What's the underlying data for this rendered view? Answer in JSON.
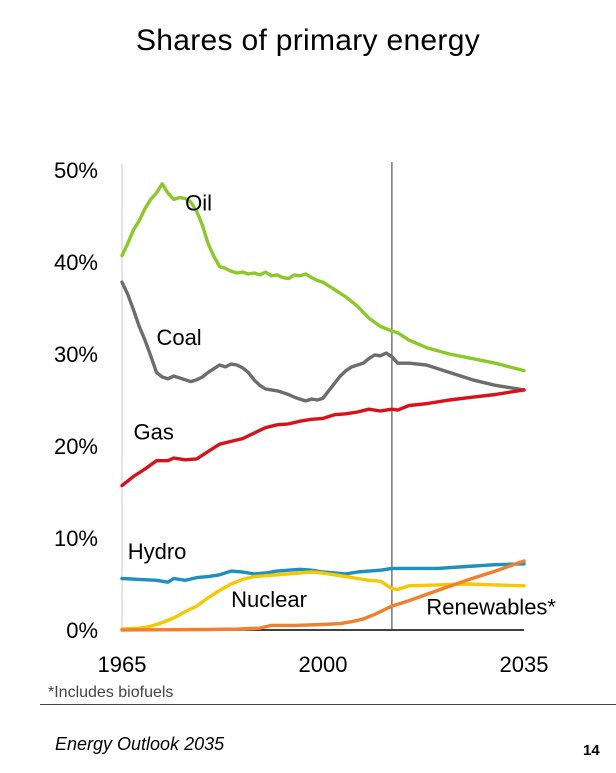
{
  "page_title": "Shares of primary energy",
  "footnote": "*Includes biofuels",
  "source": "Energy Outlook 2035",
  "page_number": "14",
  "chart_data": {
    "type": "line",
    "title": "Shares of primary energy",
    "xlabel": "",
    "ylabel": "",
    "xlim": [
      1965,
      2035
    ],
    "ylim": [
      0,
      50
    ],
    "x_ticks": [
      1965,
      2000,
      2035
    ],
    "x_tick_labels": [
      "1965",
      "2000",
      "2035"
    ],
    "y_ticks": [
      0,
      10,
      20,
      30,
      40,
      50
    ],
    "y_tick_labels": [
      "0%",
      "10%",
      "20%",
      "30%",
      "40%",
      "50%"
    ],
    "forecast_start": 2012,
    "series": [
      {
        "name": "Oil",
        "label": "Oil",
        "color": "#8ac926",
        "points": [
          [
            1965,
            40.7
          ],
          [
            1966,
            42.0
          ],
          [
            1967,
            43.5
          ],
          [
            1968,
            44.5
          ],
          [
            1969,
            45.8
          ],
          [
            1970,
            46.8
          ],
          [
            1971,
            47.5
          ],
          [
            1972,
            48.5
          ],
          [
            1973,
            47.5
          ],
          [
            1974,
            46.8
          ],
          [
            1975,
            47.0
          ],
          [
            1976,
            46.9
          ],
          [
            1977,
            46.5
          ],
          [
            1978,
            45.5
          ],
          [
            1979,
            44.0
          ],
          [
            1980,
            42.0
          ],
          [
            1981,
            40.6
          ],
          [
            1982,
            39.5
          ],
          [
            1983,
            39.3
          ],
          [
            1984,
            39.0
          ],
          [
            1985,
            38.8
          ],
          [
            1986,
            38.9
          ],
          [
            1987,
            38.7
          ],
          [
            1988,
            38.8
          ],
          [
            1989,
            38.6
          ],
          [
            1990,
            38.9
          ],
          [
            1991,
            38.5
          ],
          [
            1992,
            38.6
          ],
          [
            1993,
            38.3
          ],
          [
            1994,
            38.2
          ],
          [
            1995,
            38.6
          ],
          [
            1996,
            38.5
          ],
          [
            1997,
            38.7
          ],
          [
            1998,
            38.3
          ],
          [
            1999,
            38.0
          ],
          [
            2000,
            37.8
          ],
          [
            2002,
            37.0
          ],
          [
            2004,
            36.2
          ],
          [
            2006,
            35.2
          ],
          [
            2008,
            33.9
          ],
          [
            2010,
            33.0
          ],
          [
            2012,
            32.5
          ],
          [
            2013,
            32.3
          ],
          [
            2015,
            31.5
          ],
          [
            2018,
            30.7
          ],
          [
            2022,
            30.0
          ],
          [
            2026,
            29.5
          ],
          [
            2030,
            29.0
          ],
          [
            2035,
            28.2
          ]
        ]
      },
      {
        "name": "Coal",
        "label": "Coal",
        "color": "#6d6d6d",
        "points": [
          [
            1965,
            37.8
          ],
          [
            1966,
            36.5
          ],
          [
            1967,
            34.8
          ],
          [
            1968,
            33.0
          ],
          [
            1969,
            31.5
          ],
          [
            1970,
            29.8
          ],
          [
            1971,
            28.0
          ],
          [
            1972,
            27.5
          ],
          [
            1973,
            27.3
          ],
          [
            1974,
            27.6
          ],
          [
            1975,
            27.4
          ],
          [
            1976,
            27.2
          ],
          [
            1977,
            27.0
          ],
          [
            1978,
            27.2
          ],
          [
            1979,
            27.5
          ],
          [
            1980,
            28.0
          ],
          [
            1981,
            28.4
          ],
          [
            1982,
            28.8
          ],
          [
            1983,
            28.6
          ],
          [
            1984,
            28.9
          ],
          [
            1985,
            28.8
          ],
          [
            1986,
            28.5
          ],
          [
            1987,
            28.0
          ],
          [
            1988,
            27.2
          ],
          [
            1989,
            26.6
          ],
          [
            1990,
            26.2
          ],
          [
            1991,
            26.1
          ],
          [
            1992,
            26.0
          ],
          [
            1993,
            25.8
          ],
          [
            1994,
            25.6
          ],
          [
            1995,
            25.3
          ],
          [
            1996,
            25.1
          ],
          [
            1997,
            24.9
          ],
          [
            1998,
            25.1
          ],
          [
            1999,
            25.0
          ],
          [
            2000,
            25.2
          ],
          [
            2001,
            26.0
          ],
          [
            2002,
            26.8
          ],
          [
            2003,
            27.6
          ],
          [
            2004,
            28.2
          ],
          [
            2005,
            28.6
          ],
          [
            2006,
            28.8
          ],
          [
            2007,
            29.0
          ],
          [
            2008,
            29.5
          ],
          [
            2009,
            29.9
          ],
          [
            2010,
            29.8
          ],
          [
            2011,
            30.1
          ],
          [
            2012,
            29.7
          ],
          [
            2013,
            29.0
          ],
          [
            2015,
            29.0
          ],
          [
            2018,
            28.8
          ],
          [
            2022,
            28.0
          ],
          [
            2026,
            27.2
          ],
          [
            2030,
            26.6
          ],
          [
            2035,
            26.1
          ]
        ]
      },
      {
        "name": "Gas",
        "label": "Gas",
        "color": "#d9121a",
        "points": [
          [
            1965,
            15.7
          ],
          [
            1967,
            16.7
          ],
          [
            1969,
            17.5
          ],
          [
            1971,
            18.4
          ],
          [
            1973,
            18.4
          ],
          [
            1974,
            18.7
          ],
          [
            1976,
            18.5
          ],
          [
            1978,
            18.6
          ],
          [
            1980,
            19.4
          ],
          [
            1982,
            20.2
          ],
          [
            1984,
            20.5
          ],
          [
            1986,
            20.8
          ],
          [
            1988,
            21.4
          ],
          [
            1990,
            22.0
          ],
          [
            1992,
            22.3
          ],
          [
            1994,
            22.4
          ],
          [
            1996,
            22.7
          ],
          [
            1998,
            22.9
          ],
          [
            2000,
            23.0
          ],
          [
            2002,
            23.4
          ],
          [
            2004,
            23.5
          ],
          [
            2006,
            23.7
          ],
          [
            2008,
            24.0
          ],
          [
            2010,
            23.8
          ],
          [
            2012,
            24.0
          ],
          [
            2013,
            23.9
          ],
          [
            2015,
            24.4
          ],
          [
            2018,
            24.6
          ],
          [
            2022,
            25.0
          ],
          [
            2026,
            25.3
          ],
          [
            2030,
            25.6
          ],
          [
            2035,
            26.1
          ]
        ]
      },
      {
        "name": "Hydro",
        "label": "Hydro",
        "color": "#1f8fc0",
        "points": [
          [
            1965,
            5.6
          ],
          [
            1968,
            5.5
          ],
          [
            1971,
            5.4
          ],
          [
            1973,
            5.2
          ],
          [
            1974,
            5.6
          ],
          [
            1976,
            5.4
          ],
          [
            1978,
            5.7
          ],
          [
            1980,
            5.8
          ],
          [
            1982,
            6.0
          ],
          [
            1984,
            6.4
          ],
          [
            1986,
            6.3
          ],
          [
            1988,
            6.1
          ],
          [
            1990,
            6.2
          ],
          [
            1992,
            6.4
          ],
          [
            1994,
            6.5
          ],
          [
            1996,
            6.6
          ],
          [
            1998,
            6.5
          ],
          [
            2000,
            6.3
          ],
          [
            2002,
            6.2
          ],
          [
            2004,
            6.1
          ],
          [
            2006,
            6.3
          ],
          [
            2008,
            6.4
          ],
          [
            2010,
            6.5
          ],
          [
            2012,
            6.7
          ],
          [
            2015,
            6.7
          ],
          [
            2020,
            6.7
          ],
          [
            2025,
            6.9
          ],
          [
            2030,
            7.1
          ],
          [
            2035,
            7.2
          ]
        ]
      },
      {
        "name": "Nuclear",
        "label": "Nuclear",
        "color": "#f5c800",
        "points": [
          [
            1965,
            0.1
          ],
          [
            1968,
            0.2
          ],
          [
            1970,
            0.4
          ],
          [
            1972,
            0.8
          ],
          [
            1974,
            1.3
          ],
          [
            1976,
            2.0
          ],
          [
            1978,
            2.6
          ],
          [
            1980,
            3.5
          ],
          [
            1982,
            4.3
          ],
          [
            1984,
            5.0
          ],
          [
            1986,
            5.5
          ],
          [
            1988,
            5.8
          ],
          [
            1990,
            5.9
          ],
          [
            1992,
            6.0
          ],
          [
            1994,
            6.1
          ],
          [
            1996,
            6.2
          ],
          [
            1998,
            6.3
          ],
          [
            2000,
            6.2
          ],
          [
            2002,
            6.0
          ],
          [
            2004,
            5.8
          ],
          [
            2006,
            5.6
          ],
          [
            2008,
            5.4
          ],
          [
            2010,
            5.3
          ],
          [
            2011,
            4.9
          ],
          [
            2012,
            4.5
          ],
          [
            2013,
            4.4
          ],
          [
            2015,
            4.8
          ],
          [
            2020,
            4.9
          ],
          [
            2025,
            5.0
          ],
          [
            2030,
            4.9
          ],
          [
            2035,
            4.8
          ]
        ]
      },
      {
        "name": "Renewables*",
        "label": "Renewables*",
        "color": "#f27f2e",
        "points": [
          [
            1965,
            0.0
          ],
          [
            1980,
            0.05
          ],
          [
            1985,
            0.1
          ],
          [
            1989,
            0.2
          ],
          [
            1991,
            0.5
          ],
          [
            1995,
            0.5
          ],
          [
            2000,
            0.6
          ],
          [
            2003,
            0.7
          ],
          [
            2005,
            0.9
          ],
          [
            2007,
            1.2
          ],
          [
            2009,
            1.7
          ],
          [
            2011,
            2.3
          ],
          [
            2012,
            2.6
          ],
          [
            2015,
            3.2
          ],
          [
            2020,
            4.3
          ],
          [
            2025,
            5.4
          ],
          [
            2030,
            6.4
          ],
          [
            2035,
            7.5
          ]
        ]
      }
    ]
  }
}
